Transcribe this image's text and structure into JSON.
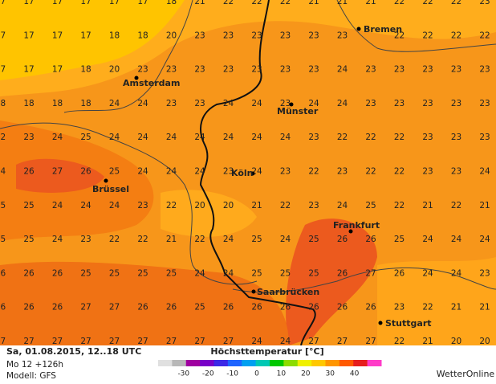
{
  "temperatures": [
    [
      17,
      17,
      17,
      17,
      17,
      17,
      18,
      21,
      22,
      22,
      22,
      21,
      21,
      21,
      22,
      22,
      22,
      23
    ],
    [
      17,
      17,
      17,
      17,
      18,
      18,
      20,
      23,
      23,
      23,
      23,
      23,
      23,
      null,
      22,
      22,
      22,
      22
    ],
    [
      17,
      17,
      17,
      18,
      20,
      23,
      23,
      23,
      23,
      23,
      23,
      23,
      24,
      23,
      23,
      23,
      23,
      23
    ],
    [
      18,
      18,
      18,
      18,
      24,
      24,
      23,
      23,
      24,
      24,
      23,
      24,
      24,
      23,
      23,
      23,
      23,
      23
    ],
    [
      22,
      23,
      24,
      25,
      24,
      24,
      24,
      24,
      24,
      24,
      24,
      23,
      22,
      22,
      22,
      23,
      23,
      23
    ],
    [
      24,
      26,
      27,
      26,
      25,
      24,
      24,
      24,
      23,
      24,
      23,
      22,
      23,
      22,
      22,
      23,
      23,
      24
    ],
    [
      25,
      25,
      24,
      24,
      24,
      23,
      22,
      20,
      20,
      21,
      22,
      23,
      24,
      25,
      22,
      21,
      22,
      21
    ],
    [
      25,
      25,
      24,
      23,
      22,
      22,
      21,
      22,
      24,
      25,
      24,
      25,
      26,
      26,
      25,
      24,
      24,
      24
    ],
    [
      26,
      26,
      26,
      25,
      25,
      25,
      25,
      24,
      24,
      25,
      25,
      25,
      26,
      27,
      26,
      24,
      24,
      23
    ],
    [
      26,
      26,
      26,
      27,
      27,
      26,
      26,
      25,
      26,
      26,
      26,
      26,
      26,
      26,
      23,
      22,
      21,
      21
    ],
    [
      27,
      27,
      27,
      27,
      27,
      27,
      27,
      27,
      27,
      24,
      24,
      27,
      27,
      27,
      22,
      21,
      20,
      20
    ]
  ],
  "cities": [
    {
      "name": "Bremen"
    },
    {
      "name": "Amsterdam"
    },
    {
      "name": "Münster"
    },
    {
      "name": "Köln"
    },
    {
      "name": "Brüssel"
    },
    {
      "name": "Frankfurt"
    },
    {
      "name": "Saarbrücken"
    },
    {
      "name": "Stuttgart"
    }
  ],
  "footer": {
    "date": "Sa, 01.08.2015, 12..18 UTC",
    "run": "Mo 12 +126h",
    "model": "Modell: GFS"
  },
  "legend": {
    "title": "Höchsttemperatur [°C]",
    "ticks": [
      -30,
      -20,
      -10,
      0,
      10,
      20,
      30,
      40
    ],
    "colors": [
      "#e0e0e0",
      "#b8b8b8",
      "#a000a0",
      "#7800c8",
      "#3c28e6",
      "#1e64ff",
      "#00a0f0",
      "#00c8b4",
      "#00c800",
      "#8cdc00",
      "#f0f000",
      "#ffc800",
      "#ff9600",
      "#ff5a00",
      "#e61e1e",
      "#ff3cc8"
    ]
  },
  "brand": "WetterOnline"
}
